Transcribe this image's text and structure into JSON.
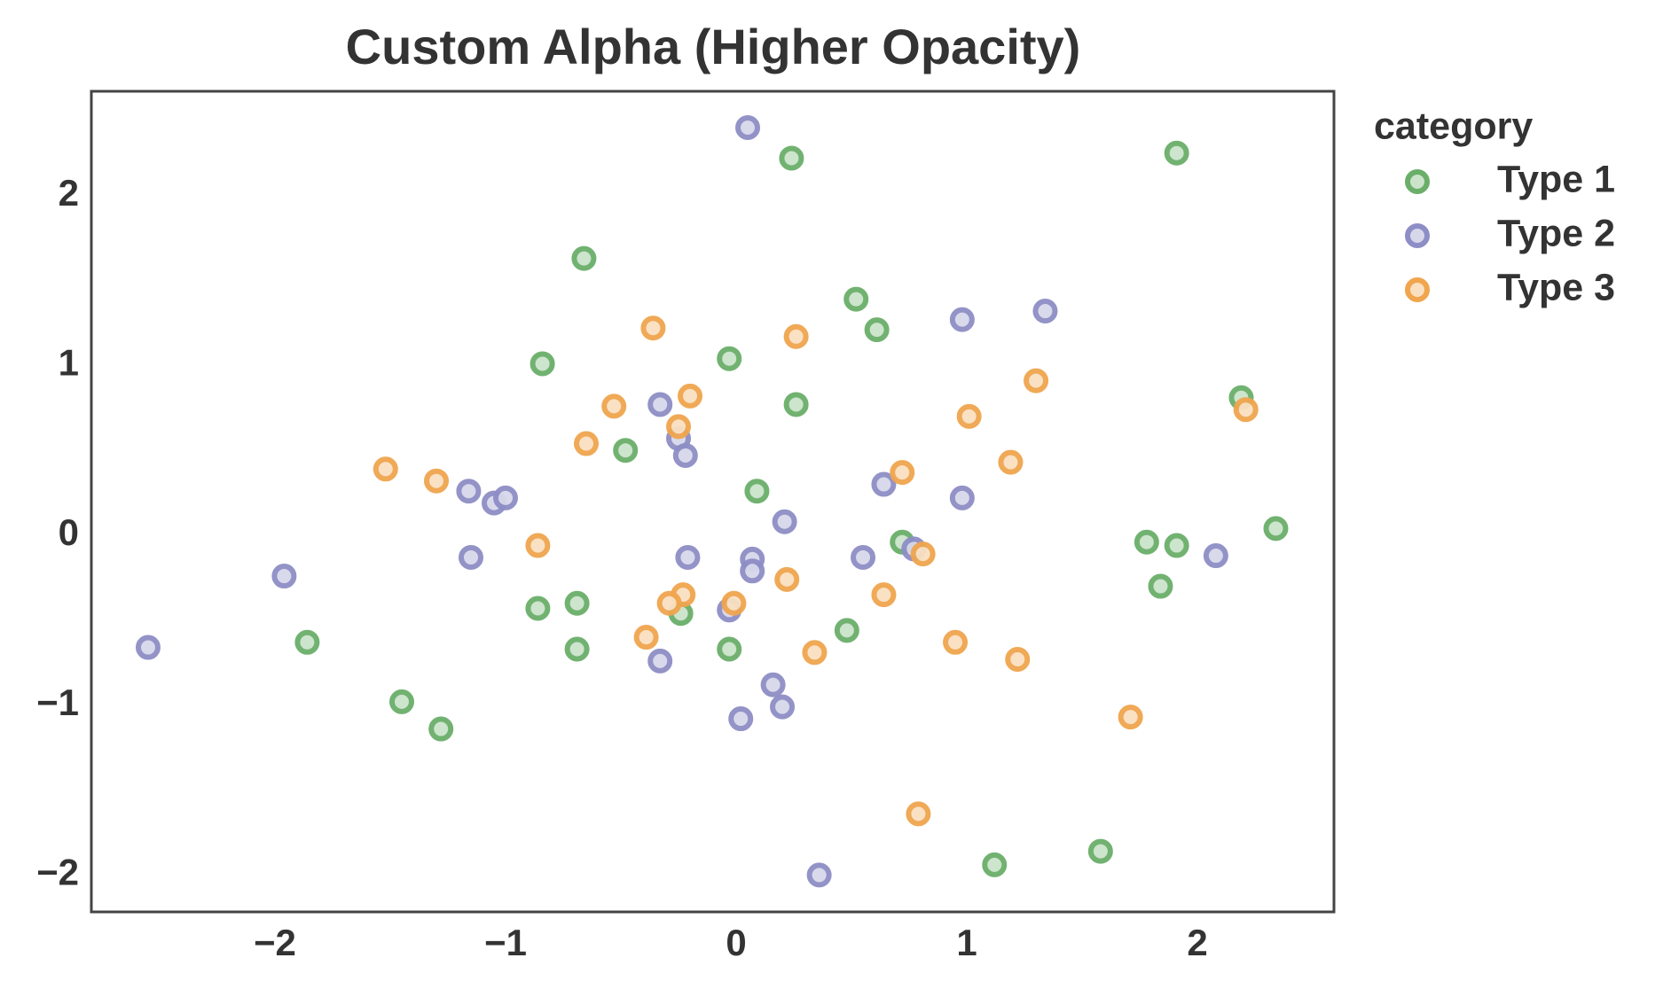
{
  "chart_data": {
    "type": "scatter",
    "title": "Custom Alpha (Higher Opacity)",
    "legend_title": "category",
    "legend": "outside-upper-right",
    "xlim": [
      -2.796,
      2.592
    ],
    "ylim": [
      -2.217,
      2.614
    ],
    "xticks": [
      {
        "value": -2,
        "label": "−2"
      },
      {
        "value": -1,
        "label": "−1"
      },
      0,
      1,
      2
    ],
    "yticks": [
      {
        "value": -2,
        "label": "−2"
      },
      {
        "value": -1,
        "label": "−1"
      },
      0,
      1,
      2
    ],
    "grid": false,
    "series": [
      {
        "name": "Type 1",
        "color": "#6aae6a",
        "x": [
          0.24,
          1.91,
          -0.66,
          0.52,
          0.61,
          -0.03,
          -0.84,
          0.26,
          2.19,
          -0.48,
          0.09,
          2.34,
          0.72,
          1.78,
          1.91,
          1.84,
          -0.69,
          -0.86,
          -0.24,
          -1.86,
          -0.69,
          -0.03,
          0.48,
          -1.45,
          -1.28,
          1.12,
          1.58
        ],
        "values": [
          2.22,
          2.25,
          1.63,
          1.39,
          1.21,
          1.04,
          1.01,
          0.77,
          0.81,
          0.5,
          0.26,
          0.04,
          -0.04,
          -0.04,
          -0.06,
          -0.3,
          -0.4,
          -0.43,
          -0.46,
          -0.63,
          -0.67,
          -0.67,
          -0.56,
          -0.98,
          -1.14,
          -1.94,
          -1.86
        ]
      },
      {
        "name": "Type 2",
        "color": "#8e8ec6",
        "x": [
          0.05,
          0.98,
          1.34,
          -0.33,
          -0.25,
          -0.22,
          -1.16,
          -1.05,
          -1.0,
          0.64,
          0.98,
          0.21,
          -1.15,
          -0.21,
          0.07,
          0.07,
          0.55,
          0.77,
          2.08,
          -1.96,
          -0.03,
          -2.55,
          -0.33,
          0.16,
          0.2,
          0.02,
          0.36
        ],
        "values": [
          2.4,
          1.27,
          1.32,
          0.77,
          0.57,
          0.47,
          0.26,
          0.19,
          0.22,
          0.3,
          0.22,
          0.08,
          -0.13,
          -0.13,
          -0.14,
          -0.21,
          -0.13,
          -0.08,
          -0.12,
          -0.24,
          -0.44,
          -0.66,
          -0.74,
          -0.88,
          -1.01,
          -1.08,
          -2.0
        ]
      },
      {
        "name": "Type 3",
        "color": "#f0a54e",
        "x": [
          -0.36,
          0.26,
          -0.2,
          -0.53,
          -0.25,
          -0.65,
          1.3,
          1.01,
          2.21,
          -1.52,
          -1.3,
          0.72,
          1.19,
          -0.86,
          0.81,
          0.22,
          -0.23,
          -0.29,
          -0.01,
          0.64,
          -0.39,
          0.34,
          0.95,
          1.22,
          1.71,
          0.79
        ],
        "values": [
          1.22,
          1.17,
          0.82,
          0.76,
          0.64,
          0.54,
          0.91,
          0.7,
          0.74,
          0.39,
          0.32,
          0.37,
          0.43,
          -0.06,
          -0.11,
          -0.26,
          -0.35,
          -0.4,
          -0.4,
          -0.35,
          -0.6,
          -0.69,
          -0.63,
          -0.73,
          -1.07,
          -1.64
        ]
      }
    ]
  }
}
